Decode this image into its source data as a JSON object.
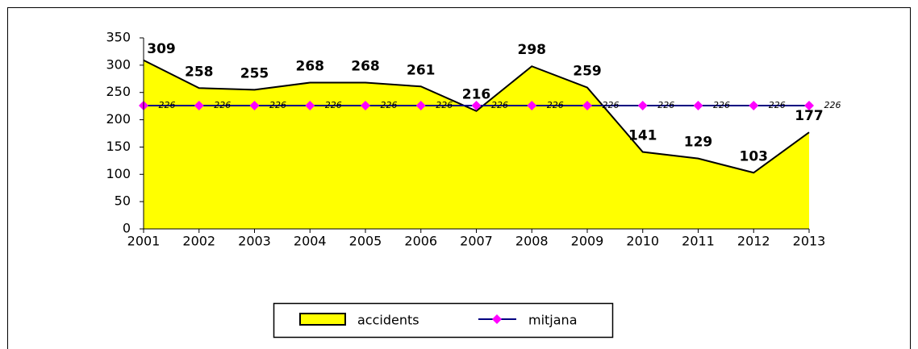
{
  "chart_data": {
    "type": "area",
    "categories": [
      "2001",
      "2002",
      "2003",
      "2004",
      "2005",
      "2006",
      "2007",
      "2008",
      "2009",
      "2010",
      "2011",
      "2012",
      "2013"
    ],
    "series": [
      {
        "name": "accidents",
        "type": "area",
        "color": "#ffff00",
        "values": [
          309,
          258,
          255,
          268,
          268,
          261,
          216,
          298,
          259,
          141,
          129,
          103,
          177
        ]
      },
      {
        "name": "mitjana",
        "type": "line",
        "color": "#000080",
        "marker_color": "#ff00ff",
        "values": [
          226,
          226,
          226,
          226,
          226,
          226,
          226,
          226,
          226,
          226,
          226,
          226,
          226
        ]
      }
    ],
    "ylim": [
      0,
      350
    ],
    "yticks": [
      0,
      50,
      100,
      150,
      200,
      250,
      300,
      350
    ],
    "legend": "bottom"
  }
}
